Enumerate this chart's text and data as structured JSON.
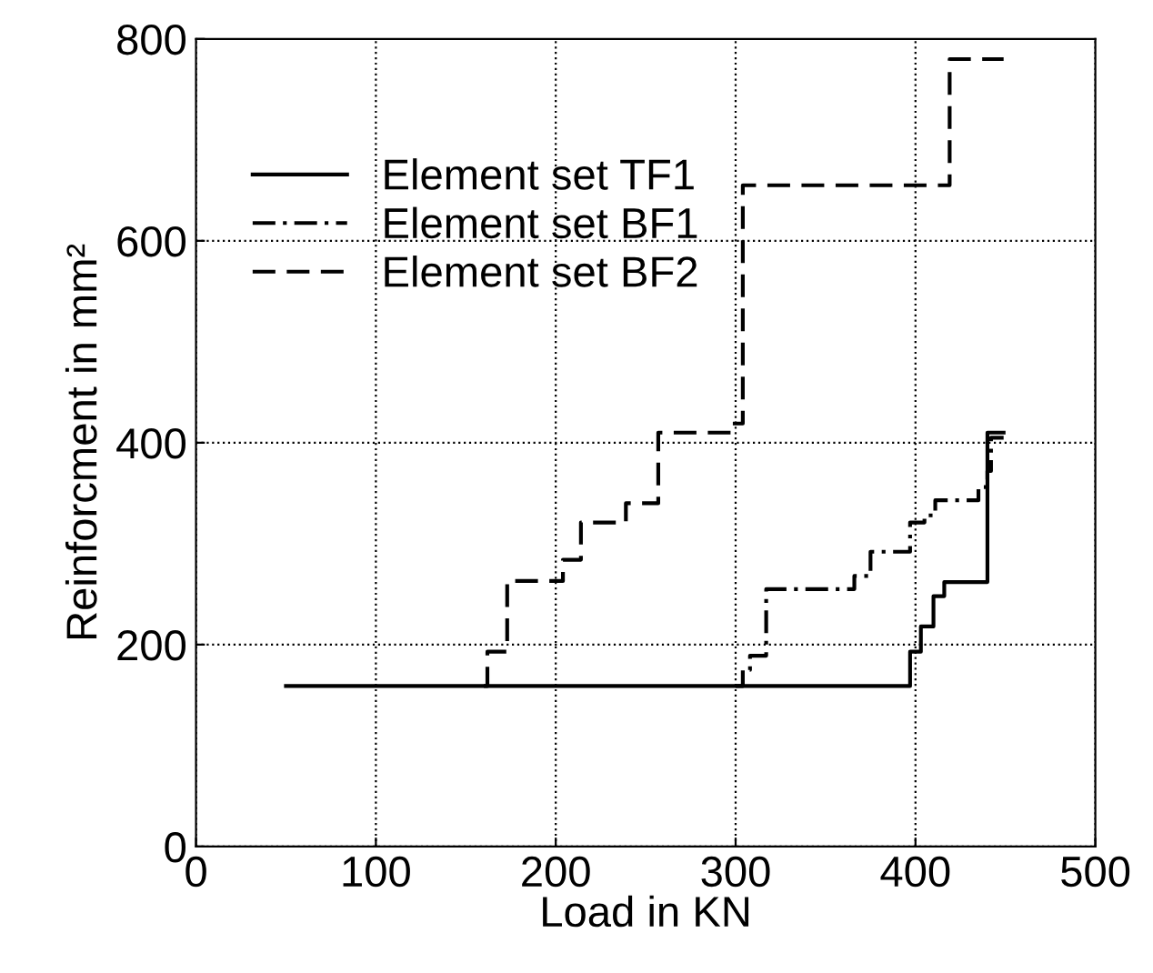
{
  "chart_data": {
    "type": "step",
    "xlabel": "Load in KN",
    "ylabel": "Reinforcment in mm²",
    "xlim": [
      0,
      500
    ],
    "ylim": [
      0,
      800
    ],
    "xticks": [
      0,
      100,
      200,
      300,
      400,
      500
    ],
    "yticks": [
      0,
      200,
      400,
      600,
      800
    ],
    "grid": true,
    "legend": "top left",
    "series": [
      {
        "name": "Element set TF1",
        "color": "#000000",
        "line_style": "solid",
        "x": [
          50,
          397,
          403,
          410,
          416,
          440,
          449
        ],
        "values": [
          159,
          193,
          218,
          248,
          262,
          410,
          410
        ]
      },
      {
        "name": "Element set BF1",
        "color": "#000000",
        "line_style": "dashdot",
        "x": [
          300,
          304,
          308,
          317,
          366,
          375,
          397,
          405,
          411,
          435,
          440,
          442,
          449
        ],
        "values": [
          159,
          175,
          189,
          255,
          268,
          292,
          321,
          328,
          343,
          356,
          372,
          405,
          405
        ]
      },
      {
        "name": "Element set BF2",
        "color": "#000000",
        "line_style": "dashed",
        "x": [
          160,
          162,
          173,
          204,
          214,
          239,
          257,
          298,
          304,
          419,
          449
        ],
        "values": [
          159,
          193,
          263,
          284,
          321,
          340,
          410,
          419,
          655,
          780,
          780
        ]
      }
    ]
  }
}
